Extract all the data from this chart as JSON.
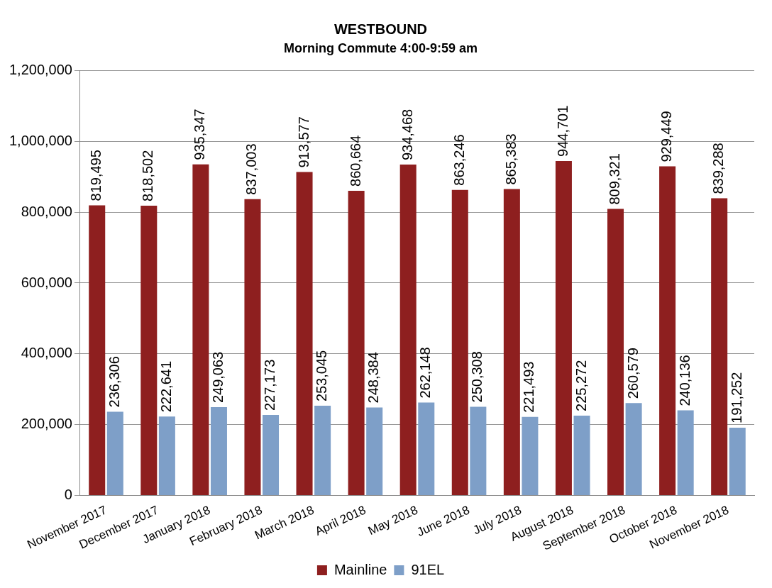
{
  "chart_data": {
    "type": "bar",
    "title": "WESTBOUND",
    "subtitle": "Morning Commute 4:00-9:59 am",
    "categories": [
      "November 2017",
      "December 2017",
      "January 2018",
      "February 2018",
      "March 2018",
      "April 2018",
      "May 2018",
      "June 2018",
      "July 2018",
      "August 2018",
      "September 2018",
      "October 2018",
      "November 2018"
    ],
    "series": [
      {
        "name": "Mainline",
        "color": "#8e1f1f",
        "values": [
          819495,
          818502,
          935347,
          837003,
          913577,
          860664,
          934468,
          863246,
          865383,
          944701,
          809321,
          929449,
          839288
        ],
        "value_labels": [
          "819,495",
          "818,502",
          "935,347",
          "837,003",
          "913,577",
          "860,664",
          "934,468",
          "863,246",
          "865,383",
          "944,701",
          "809,321",
          "929,449",
          "839,288"
        ]
      },
      {
        "name": "91EL",
        "color": "#7e9fc8",
        "values": [
          236306,
          222641,
          249063,
          227173,
          253045,
          248384,
          262148,
          250308,
          221493,
          225272,
          260579,
          240136,
          191252
        ],
        "value_labels": [
          "236,306",
          "222,641",
          "249,063",
          "227,173",
          "253,045",
          "248,384",
          "262,148",
          "250,308",
          "221,493",
          "225,272",
          "260,579",
          "240,136",
          "191,252"
        ]
      }
    ],
    "ylim": [
      0,
      1200000
    ],
    "yticks": [
      0,
      {
        "value": 200000,
        "label": "200,000"
      },
      {
        "value": 400000,
        "label": "400,000"
      },
      {
        "value": 600000,
        "label": "600,000"
      },
      {
        "value": 800000,
        "label": "800,000"
      },
      {
        "value": 1000000,
        "label": "1,000,000"
      },
      {
        "value": 1200000,
        "label": "1,200,000"
      }
    ],
    "grid": "y",
    "legend": "bottom"
  }
}
